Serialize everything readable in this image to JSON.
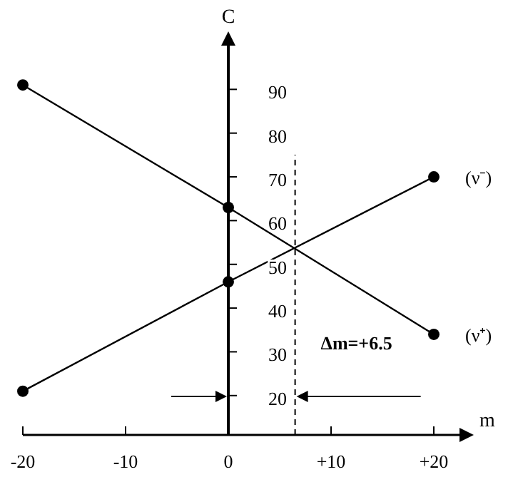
{
  "chart_data": {
    "type": "line",
    "xlabel": "m",
    "ylabel": "C",
    "x": [
      -20,
      0,
      20
    ],
    "series": [
      {
        "name": "(ν⁻)",
        "color": "#000000",
        "values": [
          21,
          46,
          70
        ]
      },
      {
        "name": "(ν⁺)",
        "color": "#000000",
        "values": [
          91,
          63,
          34
        ]
      }
    ],
    "xlim": [
      -20,
      22.5
    ],
    "ylim": [
      11,
      100
    ],
    "xticks": [
      -20,
      -10,
      0,
      {
        "value": 10,
        "label": "+10"
      },
      {
        "value": 20,
        "label": "+20"
      }
    ],
    "yticks": [
      20,
      30,
      40,
      50,
      60,
      70,
      80,
      90
    ],
    "ref_lines": [
      {
        "axis": "x",
        "value": 6.5,
        "label": "Δm=+6.5",
        "line_style": "dashed",
        "color": "#000000"
      }
    ],
    "marker": "circle",
    "line_style": "solid",
    "grid": false
  }
}
